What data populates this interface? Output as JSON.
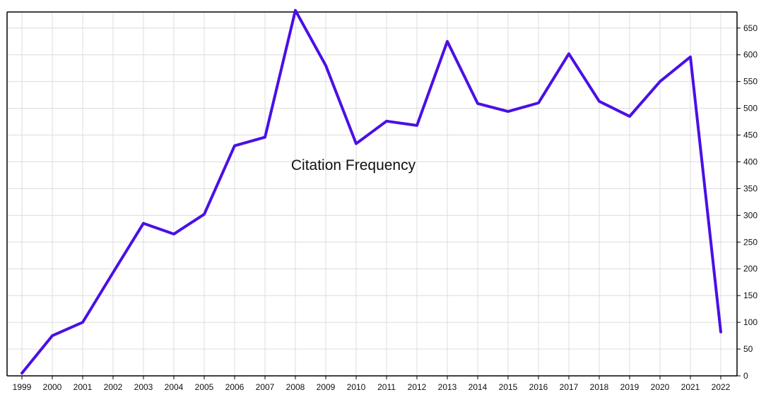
{
  "chart_data": {
    "type": "line",
    "title": "Citation Frequency",
    "xlabel": "",
    "ylabel": "",
    "categories": [
      "1999",
      "2000",
      "2001",
      "2002",
      "2003",
      "2004",
      "2005",
      "2006",
      "2007",
      "2008",
      "2009",
      "2010",
      "2011",
      "2012",
      "2013",
      "2014",
      "2015",
      "2016",
      "2017",
      "2018",
      "2019",
      "2020",
      "2021",
      "2022"
    ],
    "series": [
      {
        "name": "",
        "values": [
          5,
          75,
          100,
          193,
          285,
          265,
          302,
          430,
          446,
          683,
          580,
          434,
          476,
          468,
          625,
          509,
          494,
          510,
          602,
          513,
          485,
          550,
          596,
          82
        ],
        "color": "#4a0fe6"
      }
    ],
    "ylim": [
      0,
      680
    ],
    "yticks": [
      0,
      50,
      100,
      150,
      200,
      250,
      300,
      350,
      400,
      450,
      500,
      550,
      600,
      650
    ],
    "y_axis_side": "right",
    "grid": true
  }
}
